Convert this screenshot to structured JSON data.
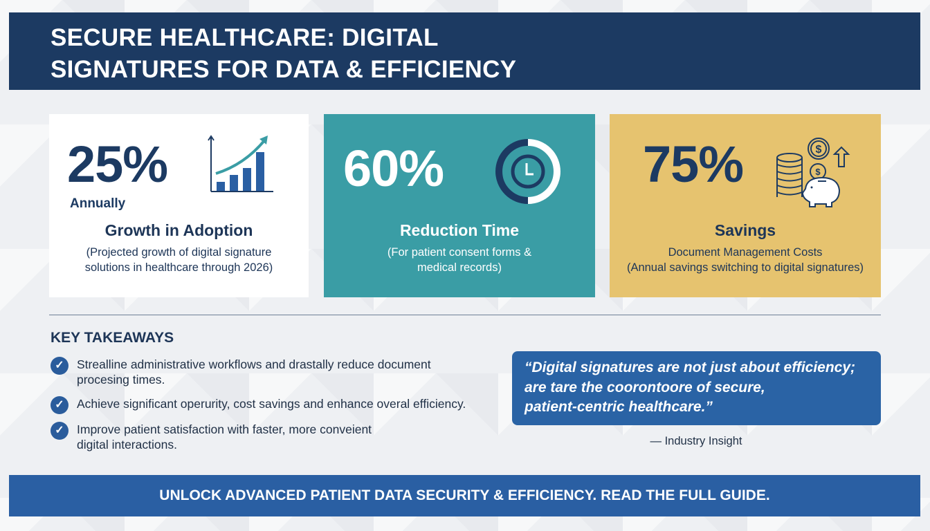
{
  "title": {
    "line1": "SECURE HEALTHCARE: DIGITAL",
    "line2": "SIGNATURES FOR DATA & EFFICIENCY"
  },
  "stats": [
    {
      "value": "25%",
      "qualifier": "Annually",
      "title": "Growth in Adoption",
      "subtitle_line1": "(Projected growth of digital signature",
      "subtitle_line2": "solutions in healthcare through 2026)",
      "icon": "growth-chart-icon",
      "color": "#ffffff"
    },
    {
      "value": "60%",
      "title": "Reduction Time",
      "subtitle_line1": "(For patient consent forms &",
      "subtitle_line2": "medical records)",
      "icon": "clock-icon",
      "color": "#3a9da5"
    },
    {
      "value": "75%",
      "title": "Savings",
      "subtitle_line1": "Document Management Costs",
      "subtitle_line2": "(Annual savings switching to digital signatures)",
      "icon": "piggy-bank-coins-icon",
      "color": "#e6c36f"
    }
  ],
  "takeaways": {
    "heading": "KEY TAKEAWAYS",
    "items": [
      {
        "line1": "Strealline administrative workflows and drastally reduce document",
        "line2": "procesing times."
      },
      {
        "line1": "Achieve significant operurity, cost savings and enhance overal efficiency.",
        "line2": ""
      },
      {
        "line1": "Improve patient satisfaction with faster, more conveient",
        "line2": "digital interactions."
      }
    ]
  },
  "quote": {
    "line1": "“Digital signatures are not just about efficiency;",
    "line2": "are tare the coorontoore of secure,",
    "line3": "patient-centric healthcare.”",
    "attribution": "— Industry Insight"
  },
  "footer": {
    "cta": "UNLOCK ADVANCED PATIENT DATA SECURITY & EFFICIENCY. READ THE FULL GUIDE."
  },
  "colors": {
    "navy": "#1c3a62",
    "blue": "#2a5fa3",
    "teal": "#3a9da5",
    "gold": "#e6c36f"
  }
}
